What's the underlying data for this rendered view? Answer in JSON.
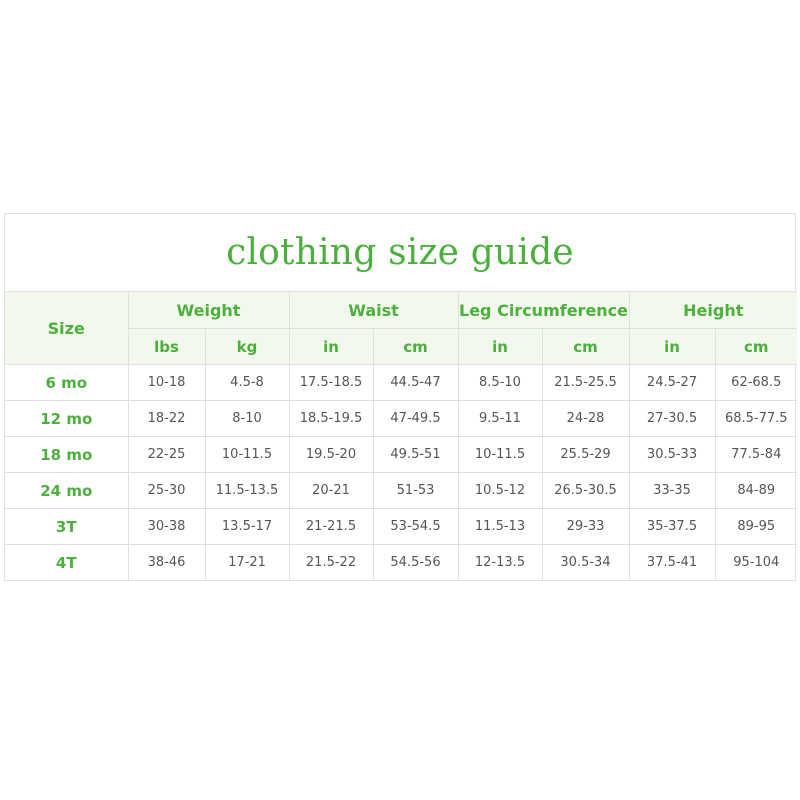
{
  "title": "clothing size guide",
  "size_header": "Size",
  "groups": [
    "Weight",
    "Waist",
    "Leg Circumference",
    "Height"
  ],
  "units": [
    "lbs",
    "kg",
    "in",
    "cm",
    "in",
    "cm",
    "in",
    "cm"
  ],
  "rows": [
    {
      "size": "6 mo",
      "values": [
        "10-18",
        "4.5-8",
        "17.5-18.5",
        "44.5-47",
        "8.5-10",
        "21.5-25.5",
        "24.5-27",
        "62-68.5"
      ]
    },
    {
      "size": "12 mo",
      "values": [
        "18-22",
        "8-10",
        "18.5-19.5",
        "47-49.5",
        "9.5-11",
        "24-28",
        "27-30.5",
        "68.5-77.5"
      ]
    },
    {
      "size": "18 mo",
      "values": [
        "22-25",
        "10-11.5",
        "19.5-20",
        "49.5-51",
        "10-11.5",
        "25.5-29",
        "30.5-33",
        "77.5-84"
      ]
    },
    {
      "size": "24 mo",
      "values": [
        "25-30",
        "11.5-13.5",
        "20-21",
        "51-53",
        "10.5-12",
        "26.5-30.5",
        "33-35",
        "84-89"
      ]
    },
    {
      "size": "3T",
      "values": [
        "30-38",
        "13.5-17",
        "21-21.5",
        "53-54.5",
        "11.5-13",
        "29-33",
        "35-37.5",
        "89-95"
      ]
    },
    {
      "size": "4T",
      "values": [
        "38-46",
        "17-21",
        "21.5-22",
        "54.5-56",
        "12-13.5",
        "30.5-34",
        "37.5-41",
        "95-104"
      ]
    }
  ],
  "colors": {
    "accent": "#4caf3e",
    "header_bg": "#f2f9ec",
    "border": "#e0e0e0",
    "text": "#555555"
  }
}
